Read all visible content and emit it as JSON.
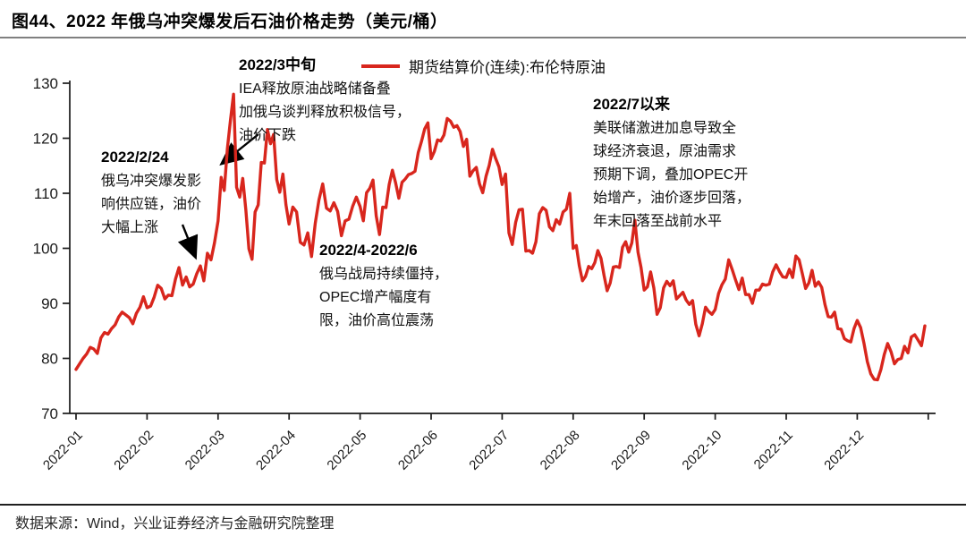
{
  "page": {
    "title": "图44、2022 年俄乌冲突爆发后石油价格走势（美元/桶）",
    "source_note": "数据来源：Wind，兴业证券经济与金融研究院整理"
  },
  "legend": {
    "label": "期货结算价(连续):布伦特原油",
    "marker_color": "#d8261d"
  },
  "annotations": [
    {
      "title": "2022/2/24",
      "body": "俄乌冲突爆发影\n响供应链，油价\n大幅上涨"
    },
    {
      "title": "2022/3中旬",
      "body": "IEA释放原油战略储备叠\n加俄乌谈判释放积极信号，\n油价下跌"
    },
    {
      "title": "2022/4-2022/6",
      "body": "俄乌战局持续僵持，\nOPEC增产幅度有\n限，油价高位震荡"
    },
    {
      "title": "2022/7以来",
      "body": "美联储激进加息导致全\n球经济衰退，原油需求\n预期下调，叠加OPEC开\n始增产，油价逐步回落，\n年末回落至战前水平"
    }
  ],
  "chart_data": {
    "type": "line",
    "title": "2022 年俄乌冲突爆发后石油价格走势（美元/桶）",
    "xlabel": "",
    "ylabel": "美元/桶",
    "ylim": [
      70,
      130
    ],
    "yticks": [
      70,
      80,
      90,
      100,
      110,
      120,
      130
    ],
    "x_tick_labels": [
      "2022-01",
      "2022-02",
      "2022-03",
      "2022-04",
      "2022-05",
      "2022-06",
      "2022-07",
      "2022-08",
      "2022-09",
      "2022-10",
      "2022-11",
      "2022-12"
    ],
    "grid": false,
    "legend_position": "top",
    "series": [
      {
        "name": "期货结算价(连续):布伦特原油",
        "color": "#d8261d",
        "unit": "美元/桶",
        "monthly_values": [
          {
            "month": "2022-01",
            "values": [
              78.0,
              79.0,
              80.0,
              80.8,
              82.0,
              81.7,
              80.9,
              83.7,
              84.7,
              84.4,
              85.4,
              86.1,
              87.5,
              88.4,
              87.9,
              87.4,
              86.3,
              88.2,
              89.3,
              91.2
            ]
          },
          {
            "month": "2022-02",
            "values": [
              89.2,
              89.5,
              91.1,
              93.3,
              92.7,
              90.8,
              91.5,
              91.4,
              94.4,
              96.5,
              93.3,
              94.8,
              93.0,
              93.5,
              95.4,
              96.8,
              94.1,
              99.1,
              97.9,
              101.0
            ]
          },
          {
            "month": "2022-03",
            "values": [
              105.0,
              112.9,
              110.5,
              118.1,
              123.2,
              128.0,
              111.1,
              109.3,
              112.7,
              106.9,
              99.9,
              98.0,
              106.6,
              107.9,
              115.6,
              115.5,
              121.6,
              119.0,
              120.7,
              112.5,
              110.2,
              113.5,
              107.9
            ]
          },
          {
            "month": "2022-04",
            "values": [
              104.4,
              107.5,
              106.6,
              101.1,
              100.6,
              102.8,
              98.5,
              104.6,
              108.8,
              111.7,
              107.3,
              106.8,
              108.3,
              106.7,
              102.3,
              105.0,
              105.3,
              107.6,
              109.3
            ]
          },
          {
            "month": "2022-05",
            "values": [
              107.6,
              105.0,
              110.1,
              110.9,
              112.4,
              105.9,
              102.5,
              107.5,
              107.4,
              111.6,
              114.2,
              111.9,
              109.1,
              112.0,
              112.6,
              113.4,
              113.6,
              114.0,
              117.4,
              119.4,
              121.7,
              122.8
            ]
          },
          {
            "month": "2022-06",
            "values": [
              116.3,
              117.6,
              119.7,
              119.5,
              120.6,
              123.6,
              123.1,
              122.0,
              122.3,
              121.2,
              118.5,
              119.8,
              113.1,
              114.1,
              114.7,
              111.7,
              110.1,
              113.1,
              115.1,
              118.0,
              116.3,
              114.8
            ]
          },
          {
            "month": "2022-07",
            "values": [
              111.6,
              113.5,
              102.8,
              100.7,
              104.7,
              107.0,
              107.1,
              99.5,
              99.6,
              99.1,
              101.2,
              106.3,
              107.4,
              106.9,
              103.9,
              103.2,
              105.2,
              104.4,
              106.6,
              107.1,
              110.0
            ]
          },
          {
            "month": "2022-08",
            "values": [
              100.0,
              100.5,
              96.8,
              94.1,
              94.9,
              96.7,
              96.3,
              97.4,
              99.6,
              98.2,
              95.1,
              92.3,
              93.7,
              96.6,
              96.7,
              96.5,
              100.2,
              101.2,
              99.3,
              101.0,
              105.1,
              99.3,
              96.5
            ]
          },
          {
            "month": "2022-09",
            "values": [
              92.4,
              93.0,
              95.7,
              92.8,
              88.0,
              89.2,
              92.8,
              94.0,
              93.2,
              94.1,
              90.8,
              91.4,
              92.0,
              90.6,
              89.8,
              90.5,
              86.2,
              84.1,
              86.3,
              89.3,
              88.5,
              88.0
            ]
          },
          {
            "month": "2022-10",
            "values": [
              88.9,
              91.8,
              93.4,
              94.4,
              97.9,
              96.2,
              94.3,
              92.5,
              94.6,
              91.6,
              91.6,
              90.0,
              92.4,
              92.4,
              93.5,
              93.3,
              93.5,
              95.7,
              97.0,
              95.8,
              94.8
            ]
          },
          {
            "month": "2022-11",
            "values": [
              94.7,
              96.2,
              94.7,
              98.6,
              97.9,
              95.4,
              92.7,
              93.7,
              96.0,
              93.1,
              93.9,
              92.9,
              89.8,
              87.6,
              87.5,
              88.4,
              85.4,
              85.3,
              83.6,
              83.2,
              83.0,
              85.4
            ]
          },
          {
            "month": "2022-12",
            "values": [
              86.9,
              85.6,
              82.7,
              79.4,
              77.2,
              76.2,
              76.1,
              78.0,
              80.7,
              82.7,
              81.2,
              79.0,
              79.8,
              80.0,
              82.2,
              81.0,
              83.9,
              84.3,
              83.3,
              82.3,
              85.9
            ]
          }
        ]
      }
    ]
  }
}
